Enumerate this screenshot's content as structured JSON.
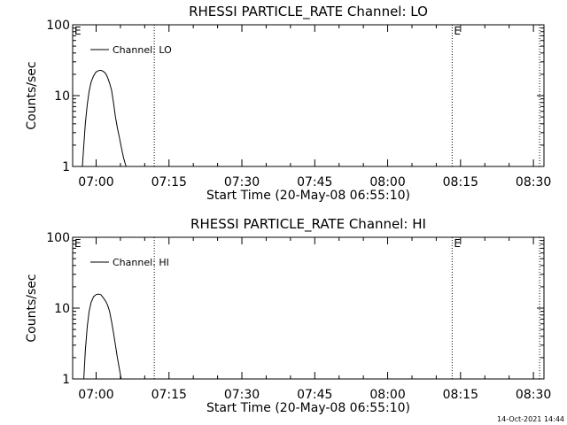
{
  "footer": {
    "timestamp": "14-Oct-2021 14:44"
  },
  "chart_data": [
    {
      "type": "line",
      "title": "RHESSI PARTICLE_RATE Channel: LO",
      "xlabel": "Start Time (20-May-08 06:55:10)",
      "ylabel": "Counts/sec",
      "yscale": "log",
      "ylim": [
        1,
        100
      ],
      "xlim_min_from_start": [
        0,
        97
      ],
      "x_ticks": [
        {
          "label": "07:00",
          "t": 4.83
        },
        {
          "label": "07:15",
          "t": 19.83
        },
        {
          "label": "07:30",
          "t": 34.83
        },
        {
          "label": "07:45",
          "t": 49.83
        },
        {
          "label": "08:00",
          "t": 64.83
        },
        {
          "label": "08:15",
          "t": 79.83
        },
        {
          "label": "08:30",
          "t": 94.83
        }
      ],
      "y_ticks": [
        {
          "label": "1",
          "v": 1
        },
        {
          "label": "10",
          "v": 10
        },
        {
          "label": "100",
          "v": 100
        }
      ],
      "legend": {
        "label": "Channel: LO",
        "placement": "top-left"
      },
      "event_lines": [
        {
          "t": 16.8,
          "label": ""
        },
        {
          "t": 78.1,
          "label": "E"
        },
        {
          "t": 96.1,
          "label": ""
        }
      ],
      "corner_marker": "E",
      "series": [
        {
          "name": "Channel: LO",
          "x": [
            2.0,
            2.2,
            2.6,
            3.0,
            3.4,
            3.8,
            4.3,
            4.8,
            5.3,
            5.8,
            6.3,
            6.8,
            7.2,
            7.6,
            8.0,
            8.4,
            8.8,
            9.2,
            9.6,
            10.0,
            10.5,
            11.0
          ],
          "y": [
            1.0,
            1.6,
            4.0,
            7.5,
            11.5,
            15.5,
            19.0,
            21.5,
            22.5,
            22.8,
            22.0,
            20.5,
            18.0,
            15.0,
            12.0,
            8.0,
            5.0,
            3.5,
            2.6,
            1.9,
            1.3,
            1.0
          ]
        }
      ]
    },
    {
      "type": "line",
      "title": "RHESSI PARTICLE_RATE Channel: HI",
      "xlabel": "Start Time (20-May-08 06:55:10)",
      "ylabel": "Counts/sec",
      "yscale": "log",
      "ylim": [
        1,
        100
      ],
      "xlim_min_from_start": [
        0,
        97
      ],
      "x_ticks": [
        {
          "label": "07:00",
          "t": 4.83
        },
        {
          "label": "07:15",
          "t": 19.83
        },
        {
          "label": "07:30",
          "t": 34.83
        },
        {
          "label": "07:45",
          "t": 49.83
        },
        {
          "label": "08:00",
          "t": 64.83
        },
        {
          "label": "08:15",
          "t": 79.83
        },
        {
          "label": "08:30",
          "t": 94.83
        }
      ],
      "y_ticks": [
        {
          "label": "1",
          "v": 1
        },
        {
          "label": "10",
          "v": 10
        },
        {
          "label": "100",
          "v": 100
        }
      ],
      "legend": {
        "label": "Channel: HI",
        "placement": "top-left"
      },
      "event_lines": [
        {
          "t": 16.8,
          "label": ""
        },
        {
          "t": 78.1,
          "label": "E"
        },
        {
          "t": 96.1,
          "label": ""
        }
      ],
      "corner_marker": "E",
      "series": [
        {
          "name": "Channel: HI",
          "x": [
            2.3,
            2.6,
            3.0,
            3.4,
            3.8,
            4.3,
            4.8,
            5.3,
            5.8,
            6.3,
            6.8,
            7.2,
            7.6,
            8.0,
            8.4,
            8.8,
            9.2,
            9.6,
            10.0
          ],
          "y": [
            1.0,
            2.5,
            5.5,
            9.0,
            12.0,
            14.5,
            15.5,
            15.8,
            15.5,
            14.0,
            12.5,
            11.0,
            9.0,
            6.5,
            4.5,
            3.0,
            2.0,
            1.4,
            1.0
          ]
        }
      ]
    }
  ]
}
